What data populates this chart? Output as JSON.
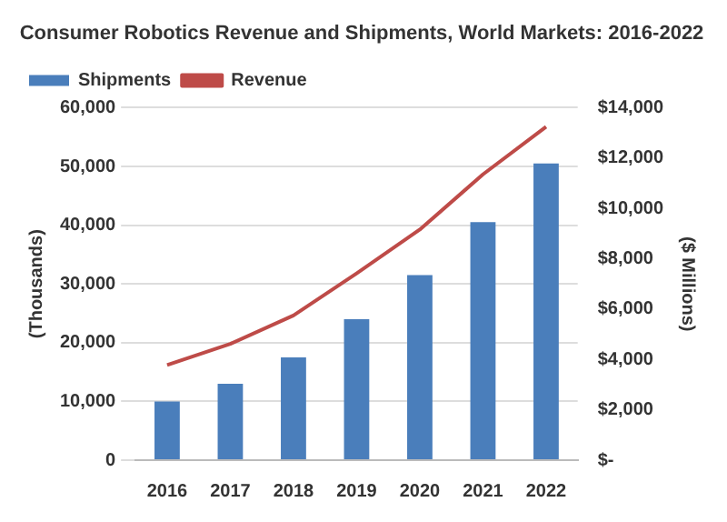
{
  "chart_data": {
    "type": "bar",
    "title": "Consumer Robotics Revenue and Shipments, World Markets: 2016-2022",
    "ylabel": "(Thousands)",
    "y2label": "($ Millions)",
    "categories": [
      "2016",
      "2017",
      "2018",
      "2019",
      "2020",
      "2021",
      "2022"
    ],
    "series": [
      {
        "name": "Shipments",
        "color": "#4a7ebb",
        "values": [
          10000,
          13000,
          17500,
          24000,
          31500,
          40500,
          50500
        ]
      },
      {
        "name": "Revenue",
        "type": "line",
        "axis": "y2",
        "color": "#be4b48",
        "values": [
          3780,
          4620,
          5750,
          7420,
          9160,
          11350,
          13240
        ]
      }
    ],
    "ylim": [
      0,
      60000
    ],
    "yticks": [
      {
        "value": 0,
        "label": "0"
      },
      {
        "value": 10000,
        "label": "10,000"
      },
      {
        "value": 20000,
        "label": "20,000"
      },
      {
        "value": 30000,
        "label": "30,000"
      },
      {
        "value": 40000,
        "label": "40,000"
      },
      {
        "value": 50000,
        "label": "50,000"
      },
      {
        "value": 60000,
        "label": "60,000"
      }
    ],
    "y2lim": [
      0,
      14000
    ],
    "y2ticks": [
      {
        "value": 0,
        "label": "$-"
      },
      {
        "value": 2000,
        "label": "$2,000"
      },
      {
        "value": 4000,
        "label": "$4,000"
      },
      {
        "value": 6000,
        "label": "$6,000"
      },
      {
        "value": 8000,
        "label": "$8,000"
      },
      {
        "value": 10000,
        "label": "$10,000"
      },
      {
        "value": 12000,
        "label": "$12,000"
      },
      {
        "value": 14000,
        "label": "$14,000"
      }
    ],
    "grid": "y",
    "legend": "top left",
    "marker": "none",
    "line_style": "solid"
  }
}
